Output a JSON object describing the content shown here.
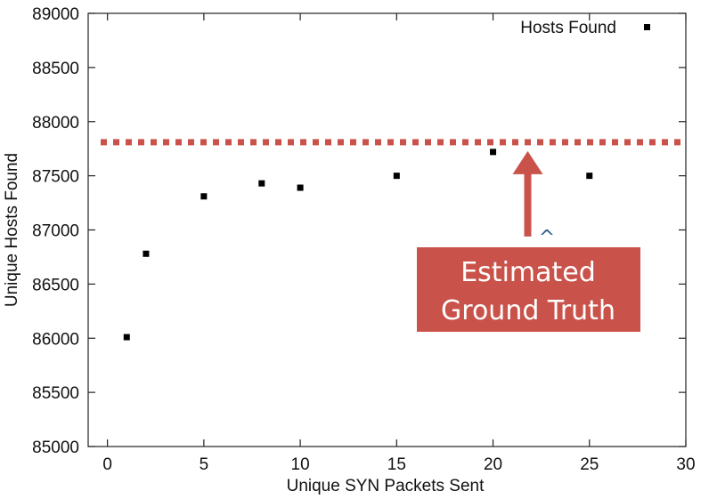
{
  "chart_data": {
    "type": "scatter",
    "xlabel": "Unique SYN Packets Sent",
    "ylabel": "Unique Hosts Found",
    "xlim": [
      -1,
      30
    ],
    "ylim": [
      85000,
      89000
    ],
    "x_ticks": [
      0,
      5,
      10,
      15,
      20,
      25,
      30
    ],
    "y_ticks": [
      85000,
      85500,
      86000,
      86500,
      87000,
      87500,
      88000,
      88500,
      89000
    ],
    "legend_position": "top-right",
    "series": [
      {
        "name": "Hosts Found",
        "marker": "square",
        "color": "#000000",
        "points": [
          {
            "x": 1,
            "y": 86010
          },
          {
            "x": 2,
            "y": 86780
          },
          {
            "x": 5,
            "y": 87310
          },
          {
            "x": 8,
            "y": 87430
          },
          {
            "x": 10,
            "y": 87390
          },
          {
            "x": 15,
            "y": 87500
          },
          {
            "x": 20,
            "y": 87720
          },
          {
            "x": 25,
            "y": 87500
          }
        ]
      }
    ],
    "reference_line": {
      "y": 87810,
      "style": "dotted",
      "color": "#c9534a"
    },
    "annotation": {
      "lines": [
        "Estimated",
        "Ground Truth"
      ],
      "arrow_x": 21.8,
      "background": "#c9534a",
      "text_color": "#ffffff"
    },
    "extra_mark": "^"
  }
}
